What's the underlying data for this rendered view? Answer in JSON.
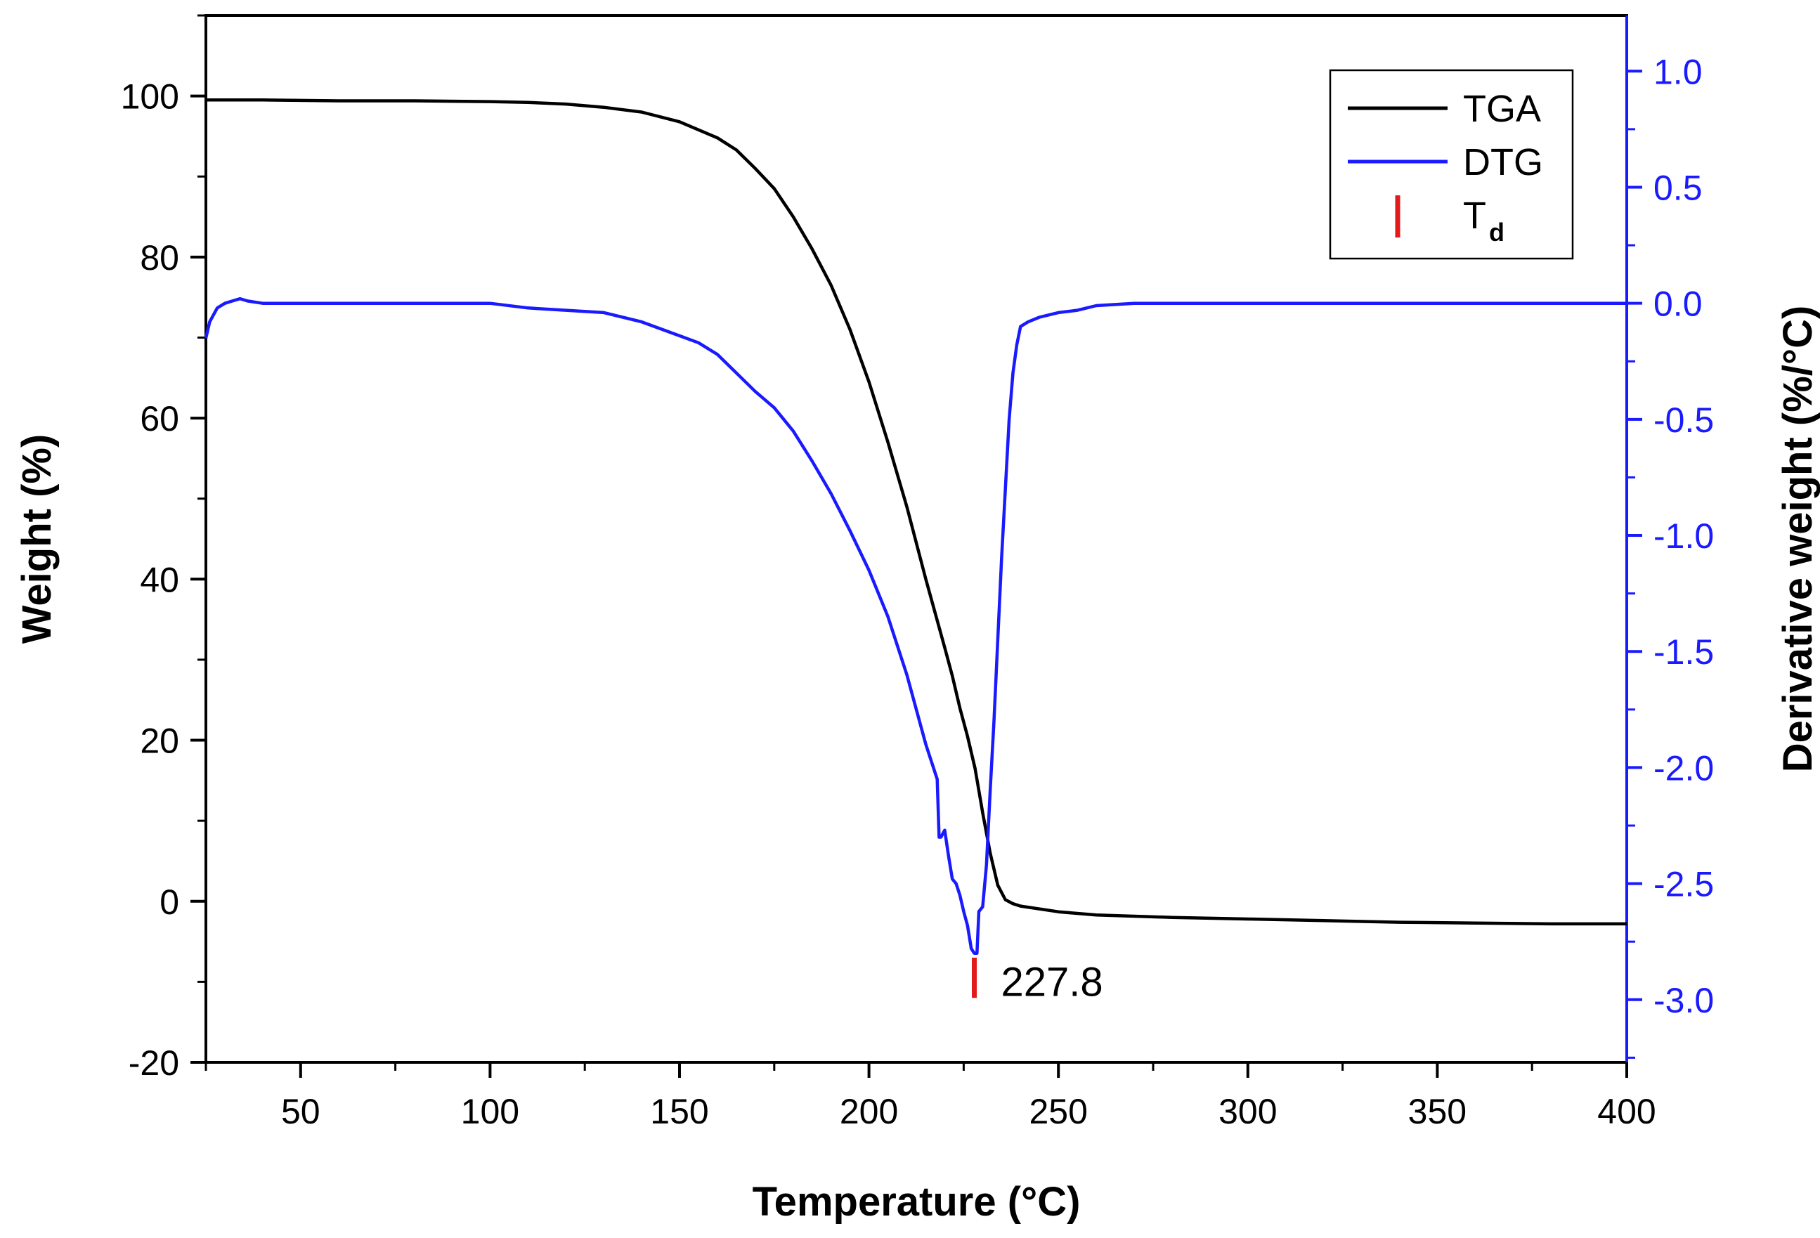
{
  "chart_data": {
    "type": "line",
    "xlabel": "Temperature (°C)",
    "ylabel": "Weight (%)",
    "y2label": "Derivative weight (%/°C)",
    "xlim": [
      25,
      400
    ],
    "ylim": [
      -20,
      110
    ],
    "y2lim": [
      -3.27,
      1.24
    ],
    "xticks": [
      50,
      100,
      150,
      200,
      250,
      300,
      350,
      400
    ],
    "xtick_labels": [
      "50",
      "100",
      "150",
      "200",
      "250",
      "300",
      "350",
      "400"
    ],
    "yticks": [
      -20,
      0,
      20,
      40,
      60,
      80,
      100
    ],
    "ytick_labels": [
      "-20",
      "0",
      "20",
      "40",
      "60",
      "80",
      "100"
    ],
    "y2ticks": [
      1.0,
      0.5,
      0.0,
      -0.5,
      -1.0,
      -1.5,
      -2.0,
      -2.5,
      -3.0
    ],
    "y2tick_labels": [
      "1.0",
      "0.5",
      "0.0",
      "-0.5",
      "-1.0",
      "-1.5",
      "-2.0",
      "-2.5",
      "-3.0"
    ],
    "legend_position": "top-right",
    "legend": [
      {
        "label": "TGA",
        "color": "#000000",
        "style": "line"
      },
      {
        "label": "DTG",
        "color": "#1a1aff",
        "style": "line"
      },
      {
        "label": "T",
        "subscript": "d",
        "color": "#e31a1c",
        "style": "marker"
      }
    ],
    "annotation": {
      "text": "227.8",
      "x": 227.8
    },
    "series": [
      {
        "name": "TGA",
        "axis": "left",
        "color": "#000000",
        "points": [
          [
            25,
            99.5
          ],
          [
            40,
            99.5
          ],
          [
            60,
            99.4
          ],
          [
            80,
            99.4
          ],
          [
            100,
            99.3
          ],
          [
            110,
            99.2
          ],
          [
            120,
            99.0
          ],
          [
            130,
            98.6
          ],
          [
            140,
            98.0
          ],
          [
            150,
            96.8
          ],
          [
            160,
            94.8
          ],
          [
            165,
            93.3
          ],
          [
            170,
            91.0
          ],
          [
            175,
            88.5
          ],
          [
            180,
            85.0
          ],
          [
            185,
            81.0
          ],
          [
            190,
            76.5
          ],
          [
            195,
            71.0
          ],
          [
            200,
            64.5
          ],
          [
            205,
            57.0
          ],
          [
            210,
            49.0
          ],
          [
            215,
            40.0
          ],
          [
            220,
            31.5
          ],
          [
            222,
            28.0
          ],
          [
            224,
            24.0
          ],
          [
            226,
            20.5
          ],
          [
            228,
            16.5
          ],
          [
            230,
            11.0
          ],
          [
            232,
            6.0
          ],
          [
            234,
            2.0
          ],
          [
            236,
            0.2
          ],
          [
            238,
            -0.3
          ],
          [
            240,
            -0.6
          ],
          [
            250,
            -1.3
          ],
          [
            260,
            -1.7
          ],
          [
            280,
            -2.0
          ],
          [
            300,
            -2.2
          ],
          [
            320,
            -2.4
          ],
          [
            340,
            -2.6
          ],
          [
            360,
            -2.7
          ],
          [
            380,
            -2.8
          ],
          [
            400,
            -2.8
          ]
        ]
      },
      {
        "name": "DTG",
        "axis": "right",
        "color": "#1a1aff",
        "points": [
          [
            25,
            -0.15
          ],
          [
            26,
            -0.08
          ],
          [
            27,
            -0.05
          ],
          [
            28,
            -0.02
          ],
          [
            30,
            0.0
          ],
          [
            32,
            0.01
          ],
          [
            34,
            0.02
          ],
          [
            36,
            0.01
          ],
          [
            40,
            0.0
          ],
          [
            60,
            0.0
          ],
          [
            80,
            0.0
          ],
          [
            100,
            0.0
          ],
          [
            110,
            -0.02
          ],
          [
            120,
            -0.03
          ],
          [
            130,
            -0.04
          ],
          [
            140,
            -0.08
          ],
          [
            150,
            -0.14
          ],
          [
            155,
            -0.17
          ],
          [
            160,
            -0.22
          ],
          [
            165,
            -0.3
          ],
          [
            170,
            -0.38
          ],
          [
            175,
            -0.45
          ],
          [
            180,
            -0.55
          ],
          [
            185,
            -0.68
          ],
          [
            190,
            -0.82
          ],
          [
            195,
            -0.98
          ],
          [
            200,
            -1.15
          ],
          [
            205,
            -1.35
          ],
          [
            210,
            -1.6
          ],
          [
            215,
            -1.9
          ],
          [
            218,
            -2.05
          ],
          [
            218.5,
            -2.3
          ],
          [
            219,
            -2.3
          ],
          [
            220,
            -2.27
          ],
          [
            221,
            -2.38
          ],
          [
            222,
            -2.48
          ],
          [
            223,
            -2.5
          ],
          [
            224,
            -2.55
          ],
          [
            225,
            -2.62
          ],
          [
            226,
            -2.68
          ],
          [
            227,
            -2.78
          ],
          [
            227.8,
            -2.8
          ],
          [
            228.5,
            -2.8
          ],
          [
            229,
            -2.62
          ],
          [
            230,
            -2.6
          ],
          [
            231,
            -2.42
          ],
          [
            232,
            -2.1
          ],
          [
            233,
            -1.8
          ],
          [
            234,
            -1.45
          ],
          [
            235,
            -1.1
          ],
          [
            236,
            -0.8
          ],
          [
            237,
            -0.5
          ],
          [
            238,
            -0.3
          ],
          [
            239,
            -0.18
          ],
          [
            240,
            -0.1
          ],
          [
            242,
            -0.08
          ],
          [
            245,
            -0.06
          ],
          [
            250,
            -0.04
          ],
          [
            255,
            -0.03
          ],
          [
            260,
            -0.01
          ],
          [
            270,
            0.0
          ],
          [
            290,
            0.0
          ],
          [
            300,
            0.0
          ],
          [
            320,
            0.0
          ],
          [
            340,
            0.0
          ],
          [
            360,
            0.0
          ],
          [
            380,
            0.0
          ],
          [
            400,
            0.0
          ]
        ]
      }
    ]
  }
}
